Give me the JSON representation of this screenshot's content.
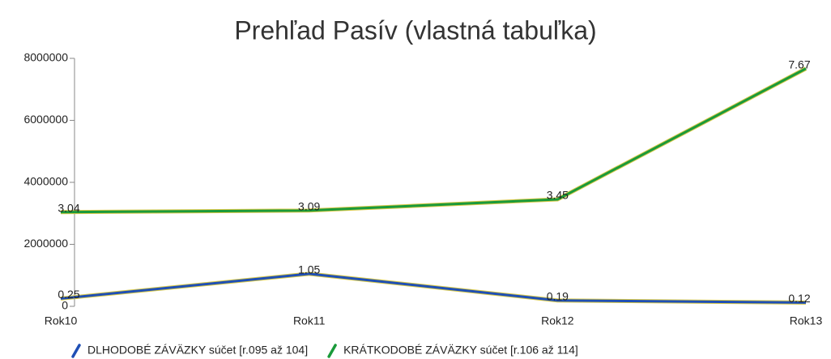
{
  "chart_data": {
    "type": "line",
    "title": "Prehľad Pasív (vlastná tabuľka)",
    "categories": [
      "Rok10",
      "Rok11",
      "Rok12",
      "Rok13"
    ],
    "series": [
      {
        "name": "DLHODOBÉ ZÁVÄZKY súčet [r.095 až 104]",
        "color": "#1f4fb5",
        "values": [
          250000,
          1050000,
          190000,
          120000
        ],
        "value_labels": [
          "0.25",
          "1.05",
          "0.19",
          "0.12"
        ]
      },
      {
        "name": "KRÁTKODOBÉ ZÁVÄZKY súčet [r.106 až 114]",
        "color": "#1a9a3a",
        "values": [
          3040000,
          3090000,
          3450000,
          7670000
        ],
        "value_labels": [
          "3.04",
          "3.09",
          "3.45",
          "7.67"
        ]
      }
    ],
    "ylim": [
      0,
      8000000
    ],
    "yticks": [
      0,
      2000000,
      4000000,
      6000000,
      8000000
    ]
  }
}
